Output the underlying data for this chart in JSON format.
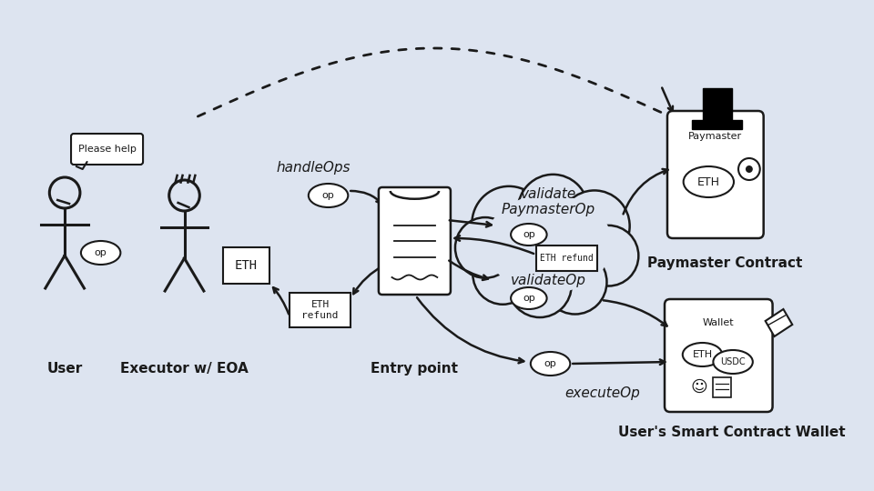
{
  "bg_color": "#dde4f0",
  "labels": {
    "user": "User",
    "executor": "Executor w/ EOA",
    "entry_point": "Entry point",
    "paymaster_contract": "Paymaster Contract",
    "wallet": "User's Smart Contract Wallet",
    "handleOps": "handleOps",
    "validatePaymasterOp": "validate\nPaymasterOp",
    "validateOp": "validateOp",
    "executeOp": "executeOp",
    "op": "op",
    "ETH": "ETH",
    "ETH_refund": "ETH\nrefund",
    "please_help": "Please help",
    "paymaster_label": "Paymaster",
    "wallet_label": "Wallet",
    "USDC": "USDC",
    "ETH_refund_mono": "ETH refund"
  },
  "line_color": "#1a1a1a",
  "line_width": 2.0,
  "text_color": "#1a1a1a"
}
